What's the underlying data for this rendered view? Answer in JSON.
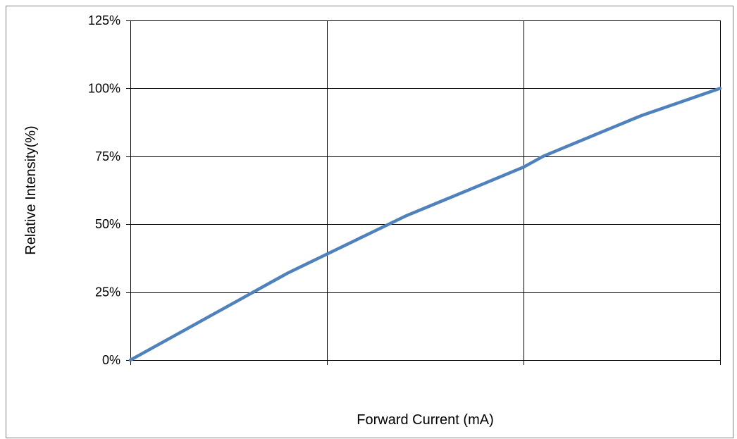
{
  "chart_data": {
    "type": "line",
    "title": "",
    "xlabel": "Forward Current (mA)",
    "ylabel": "Relative Intensity(%)",
    "x_tick_labels": [],
    "y_ticks": [
      0,
      25,
      50,
      75,
      100,
      125
    ],
    "y_tick_labels": [
      "0%",
      "25%",
      "50%",
      "75%",
      "100%",
      "125%"
    ],
    "xlim": [
      0,
      3
    ],
    "ylim": [
      0,
      125
    ],
    "grid": true,
    "legend": "none",
    "series": [
      {
        "color": "#4f81bd",
        "points": [
          [
            0,
            0
          ],
          [
            0.2,
            8
          ],
          [
            0.4,
            16
          ],
          [
            0.55,
            22
          ],
          [
            0.7,
            28
          ],
          [
            0.8,
            32
          ],
          [
            1.0,
            39
          ],
          [
            1.2,
            46
          ],
          [
            1.4,
            53
          ],
          [
            1.6,
            59
          ],
          [
            1.8,
            65
          ],
          [
            2.0,
            71
          ],
          [
            2.1,
            75
          ],
          [
            2.2,
            78
          ],
          [
            2.4,
            84
          ],
          [
            2.6,
            90
          ],
          [
            2.8,
            95
          ],
          [
            3.0,
            100
          ]
        ]
      }
    ]
  }
}
